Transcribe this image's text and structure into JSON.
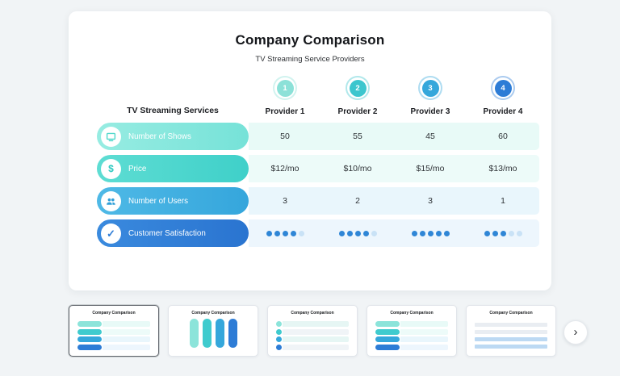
{
  "page": {
    "background": "#f1f4f6"
  },
  "card": {
    "title": "Company Comparison",
    "subtitle": "TV Streaming Service Providers"
  },
  "table": {
    "corner_label": "TV Streaming Services",
    "providers": [
      {
        "number": "1",
        "label": "Provider 1",
        "color": "#8ce1d8"
      },
      {
        "number": "2",
        "label": "Provider 2",
        "color": "#3cc6ce"
      },
      {
        "number": "3",
        "label": "Provider 3",
        "color": "#35a7db"
      },
      {
        "number": "4",
        "label": "Provider 4",
        "color": "#2d7cd6"
      }
    ],
    "rows": [
      {
        "label": "Number of Shows",
        "icon": "tv-icon",
        "pill_start": "#97ece2",
        "pill_end": "#76e2d8",
        "icon_color": "#4fd8cb",
        "cell_bg": "#e8faf7",
        "type": "text",
        "values": [
          "50",
          "55",
          "45",
          "60"
        ]
      },
      {
        "label": "Price",
        "icon": "dollar-icon",
        "pill_start": "#5eddd3",
        "pill_end": "#3fd0c9",
        "icon_color": "#2cc9bf",
        "cell_bg": "#edfbf9",
        "type": "text",
        "values": [
          "$12/mo",
          "$10/mo",
          "$15/mo",
          "$13/mo"
        ]
      },
      {
        "label": "Number of Users",
        "icon": "users-icon",
        "pill_start": "#4fb9e6",
        "pill_end": "#35a6dc",
        "icon_color": "#2f9fd8",
        "cell_bg": "#e9f6fc",
        "type": "text",
        "values": [
          "3",
          "2",
          "3",
          "1"
        ]
      },
      {
        "label": "Customer Satisfaction",
        "icon": "check-icon",
        "pill_start": "#3a8ade",
        "pill_end": "#2a74d0",
        "icon_color": "#2d7cd6",
        "cell_bg": "#edf6fd",
        "type": "rating",
        "max": 5,
        "ratings": [
          4,
          4,
          5,
          3
        ]
      }
    ],
    "rating_colors": {
      "filled": "#2f86d6",
      "empty": "#c9e2f6"
    }
  },
  "carousel": {
    "next_label": "›",
    "thumbnails": [
      {
        "title": "Company Comparison",
        "variant": "h-rows",
        "selected": true
      },
      {
        "title": "Company Comparison",
        "variant": "v-pills",
        "selected": false
      },
      {
        "title": "Company Comparison",
        "variant": "grid",
        "selected": false
      },
      {
        "title": "Company Comparison",
        "variant": "h-rows",
        "selected": false
      },
      {
        "title": "Company Comparison",
        "variant": "lines",
        "selected": false
      }
    ]
  }
}
